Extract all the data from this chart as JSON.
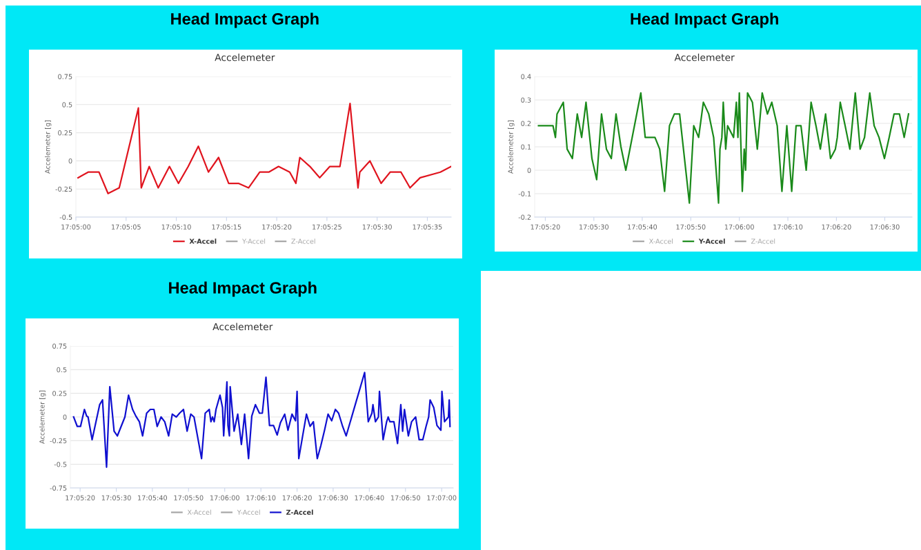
{
  "chart_data": [
    {
      "type": "line",
      "title": "Head Impact Graph",
      "subtitle": "Accelemeter",
      "ylabel": "Accelemeter [g]",
      "legend": "bottom",
      "grid": "y",
      "xlim": [
        17.08333,
        17.09372
      ],
      "xticks": [
        {
          "value": 17.08333,
          "label": "17:05:00"
        },
        {
          "value": 17.08472,
          "label": "17:05:05"
        },
        {
          "value": 17.08611,
          "label": "17:05:10"
        },
        {
          "value": 17.0875,
          "label": "17:05:15"
        },
        {
          "value": 17.08889,
          "label": "17:05:20"
        },
        {
          "value": 17.09028,
          "label": "17:05:25"
        },
        {
          "value": 17.09167,
          "label": "17:05:30"
        },
        {
          "value": 17.09306,
          "label": "17:05:35"
        }
      ],
      "ylim": [
        -0.5,
        0.75
      ],
      "yticks": [
        -0.5,
        -0.25,
        0,
        0.25,
        0.5,
        0.75
      ],
      "series": [
        {
          "name": "X-Accel",
          "color": "#e0141e",
          "x": [
            17.08339,
            17.08367,
            17.08397,
            17.08422,
            17.08453,
            17.08506,
            17.08514,
            17.08536,
            17.08561,
            17.08592,
            17.08617,
            17.08644,
            17.08672,
            17.087,
            17.08728,
            17.08756,
            17.08783,
            17.08811,
            17.08842,
            17.08867,
            17.08894,
            17.08925,
            17.08942,
            17.08953,
            17.08981,
            17.09008,
            17.09036,
            17.09064,
            17.09092,
            17.09114,
            17.09119,
            17.09147,
            17.09178,
            17.09203,
            17.09233,
            17.09258,
            17.09286,
            17.09342,
            17.09372
          ],
          "values": [
            -0.15,
            -0.1,
            -0.1,
            -0.29,
            -0.24,
            0.47,
            -0.24,
            -0.05,
            -0.24,
            -0.05,
            -0.2,
            -0.05,
            0.13,
            -0.1,
            0.03,
            -0.2,
            -0.2,
            -0.24,
            -0.1,
            -0.1,
            -0.05,
            -0.1,
            -0.2,
            0.03,
            -0.05,
            -0.15,
            -0.05,
            -0.05,
            0.51,
            -0.24,
            -0.1,
            0,
            -0.2,
            -0.1,
            -0.1,
            -0.24,
            -0.15,
            -0.1,
            -0.05
          ]
        },
        {
          "name": "Y-Accel",
          "color": "#a6a6a6"
        },
        {
          "name": "Z-Accel",
          "color": "#a6a6a6"
        }
      ]
    },
    {
      "type": "line",
      "title": "Head Impact Graph",
      "subtitle": "Accelemeter",
      "ylabel": "Accelemeter [g]",
      "legend": "bottom",
      "grid": "y",
      "xlim": [
        17.08828,
        17.10989
      ],
      "xticks": [
        {
          "value": 17.08889,
          "label": "17:05:20"
        },
        {
          "value": 17.09167,
          "label": "17:05:30"
        },
        {
          "value": 17.09444,
          "label": "17:05:40"
        },
        {
          "value": 17.09722,
          "label": "17:05:50"
        },
        {
          "value": 17.1,
          "label": "17:06:00"
        },
        {
          "value": 17.10278,
          "label": "17:06:10"
        },
        {
          "value": 17.10556,
          "label": "17:06:20"
        },
        {
          "value": 17.10833,
          "label": "17:06:30"
        }
      ],
      "ylim": [
        -0.2,
        0.4
      ],
      "yticks": [
        -0.2,
        -0.1,
        0,
        0.1,
        0.2,
        0.3,
        0.4
      ],
      "series": [
        {
          "name": "X-Accel",
          "color": "#a6a6a6"
        },
        {
          "name": "Y-Accel",
          "color": "#1a8a1a",
          "x": [
            17.0885,
            17.08878,
            17.08906,
            17.08933,
            17.08947,
            17.08956,
            17.08992,
            17.09014,
            17.09044,
            17.09072,
            17.09097,
            17.09122,
            17.09156,
            17.09183,
            17.09211,
            17.09239,
            17.09267,
            17.09294,
            17.09322,
            17.0935,
            17.09436,
            17.09461,
            17.09517,
            17.09544,
            17.09572,
            17.096,
            17.09628,
            17.09658,
            17.09714,
            17.09739,
            17.09767,
            17.09794,
            17.09825,
            17.09853,
            17.09881,
            17.09889,
            17.099,
            17.09908,
            17.09922,
            17.09933,
            17.09967,
            17.09983,
            17.09992,
            17.1,
            17.10017,
            17.10028,
            17.10036,
            17.10047,
            17.10075,
            17.10103,
            17.10131,
            17.10161,
            17.10186,
            17.10217,
            17.10244,
            17.10272,
            17.103,
            17.10325,
            17.10353,
            17.10383,
            17.10411,
            17.10439,
            17.10464,
            17.10494,
            17.10522,
            17.1055,
            17.10561,
            17.10578,
            17.10606,
            17.10633,
            17.10664,
            17.10692,
            17.10717,
            17.10747,
            17.10772,
            17.108,
            17.10831,
            17.10858,
            17.10886,
            17.10917,
            17.10944,
            17.10969
          ],
          "values": [
            0.19,
            0.19,
            0.19,
            0.19,
            0.14,
            0.24,
            0.29,
            0.09,
            0.05,
            0.24,
            0.14,
            0.29,
            0.05,
            -0.04,
            0.24,
            0.09,
            0.05,
            0.24,
            0.1,
            0,
            0.33,
            0.14,
            0.14,
            0.09,
            -0.09,
            0.19,
            0.24,
            0.24,
            -0.14,
            0.19,
            0.14,
            0.29,
            0.24,
            0.14,
            -0.14,
            0.09,
            0.14,
            0.29,
            0.09,
            0.19,
            0.14,
            0.29,
            0.14,
            0.33,
            -0.09,
            0.09,
            0,
            0.33,
            0.29,
            0.09,
            0.33,
            0.24,
            0.29,
            0.19,
            -0.09,
            0.19,
            -0.09,
            0.19,
            0.19,
            0,
            0.29,
            0.19,
            0.09,
            0.24,
            0.05,
            0.09,
            0.14,
            0.29,
            0.19,
            0.09,
            0.33,
            0.09,
            0.14,
            0.33,
            0.19,
            0.14,
            0.05,
            0.14,
            0.24,
            0.24,
            0.14,
            0.24
          ]
        },
        {
          "name": "Z-Accel",
          "color": "#a6a6a6"
        }
      ]
    },
    {
      "type": "line",
      "title": "Head Impact Graph",
      "subtitle": "Accelemeter",
      "ylabel": "Accelemeter [g]",
      "legend": "bottom",
      "grid": "y",
      "xlim": [
        17.08814,
        17.11756
      ],
      "xticks": [
        {
          "value": 17.08889,
          "label": "17:05:20"
        },
        {
          "value": 17.09167,
          "label": "17:05:30"
        },
        {
          "value": 17.09444,
          "label": "17:05:40"
        },
        {
          "value": 17.09722,
          "label": "17:05:50"
        },
        {
          "value": 17.1,
          "label": "17:06:00"
        },
        {
          "value": 17.10278,
          "label": "17:06:10"
        },
        {
          "value": 17.10556,
          "label": "17:06:20"
        },
        {
          "value": 17.10833,
          "label": "17:06:30"
        },
        {
          "value": 17.11111,
          "label": "17:06:40"
        },
        {
          "value": 17.11389,
          "label": "17:06:50"
        },
        {
          "value": 17.11667,
          "label": "17:07:00"
        }
      ],
      "ylim": [
        -0.75,
        0.75
      ],
      "yticks": [
        -0.75,
        -0.5,
        -0.25,
        0,
        0.25,
        0.5,
        0.75
      ],
      "series": [
        {
          "name": "X-Accel",
          "color": "#a6a6a6"
        },
        {
          "name": "Y-Accel",
          "color": "#a6a6a6"
        },
        {
          "name": "Z-Accel",
          "color": "#1010d0",
          "x": [
            17.08839,
            17.08867,
            17.08892,
            17.08922,
            17.08939,
            17.0895,
            17.08981,
            17.09039,
            17.09061,
            17.09092,
            17.09117,
            17.0915,
            17.09175,
            17.09233,
            17.09261,
            17.09292,
            17.09317,
            17.09344,
            17.09369,
            17.094,
            17.09428,
            17.09456,
            17.09481,
            17.09511,
            17.09539,
            17.09569,
            17.09597,
            17.09628,
            17.09653,
            17.09683,
            17.09711,
            17.09739,
            17.09764,
            17.09822,
            17.0985,
            17.09881,
            17.09894,
            17.09906,
            17.09919,
            17.09933,
            17.09964,
            17.09983,
            17.09992,
            17.10017,
            17.10025,
            17.10036,
            17.10042,
            17.10072,
            17.101,
            17.10128,
            17.10153,
            17.10183,
            17.10208,
            17.10236,
            17.10267,
            17.10289,
            17.10317,
            17.10344,
            17.10375,
            17.10403,
            17.10428,
            17.10461,
            17.10486,
            17.10517,
            17.10544,
            17.10556,
            17.10569,
            17.106,
            17.10628,
            17.10656,
            17.10681,
            17.10711,
            17.10739,
            17.10767,
            17.10794,
            17.10822,
            17.1085,
            17.10875,
            17.10906,
            17.10933,
            17.11003,
            17.11075,
            17.11103,
            17.11131,
            17.11139,
            17.11158,
            17.11181,
            17.11189,
            17.11217,
            17.11244,
            17.11256,
            17.11269,
            17.113,
            17.11328,
            17.11353,
            17.11367,
            17.11381,
            17.11411,
            17.11436,
            17.11467,
            17.11494,
            17.11522,
            17.11547,
            17.11567,
            17.11578,
            17.11606,
            17.11631,
            17.11661,
            17.11669,
            17.11689,
            17.11719,
            17.11725,
            17.11731
          ],
          "values": [
            0,
            -0.1,
            -0.1,
            0.08,
            0.01,
            0,
            -0.24,
            0.13,
            0.18,
            -0.53,
            0.32,
            -0.15,
            -0.2,
            0,
            0.23,
            0.08,
            0.01,
            -0.05,
            -0.2,
            0.04,
            0.08,
            0.08,
            -0.1,
            0,
            -0.05,
            -0.2,
            0.03,
            0,
            0.04,
            0.08,
            -0.15,
            0.03,
            0,
            -0.44,
            0.04,
            0.08,
            -0.05,
            0,
            -0.05,
            0.08,
            0.23,
            0.1,
            -0.2,
            0.37,
            -0.09,
            -0.2,
            0.32,
            -0.15,
            0.03,
            -0.29,
            0.03,
            -0.44,
            0.01,
            0.13,
            0.04,
            0.04,
            0.42,
            -0.09,
            -0.09,
            -0.19,
            -0.06,
            0.03,
            -0.14,
            0.03,
            -0.04,
            0.27,
            -0.44,
            -0.19,
            0.03,
            -0.1,
            -0.05,
            -0.44,
            -0.3,
            -0.14,
            0.03,
            -0.04,
            0.08,
            0.04,
            -0.1,
            -0.2,
            0.13,
            0.47,
            -0.05,
            0.04,
            0.13,
            -0.05,
            0,
            0.27,
            -0.24,
            -0.05,
            0,
            -0.05,
            -0.05,
            -0.28,
            0.13,
            -0.15,
            0.08,
            -0.2,
            -0.05,
            0,
            -0.24,
            -0.24,
            -0.1,
            0,
            0.18,
            0.1,
            -0.09,
            -0.14,
            0.27,
            -0.05,
            0,
            0.18,
            -0.1
          ]
        }
      ]
    }
  ]
}
